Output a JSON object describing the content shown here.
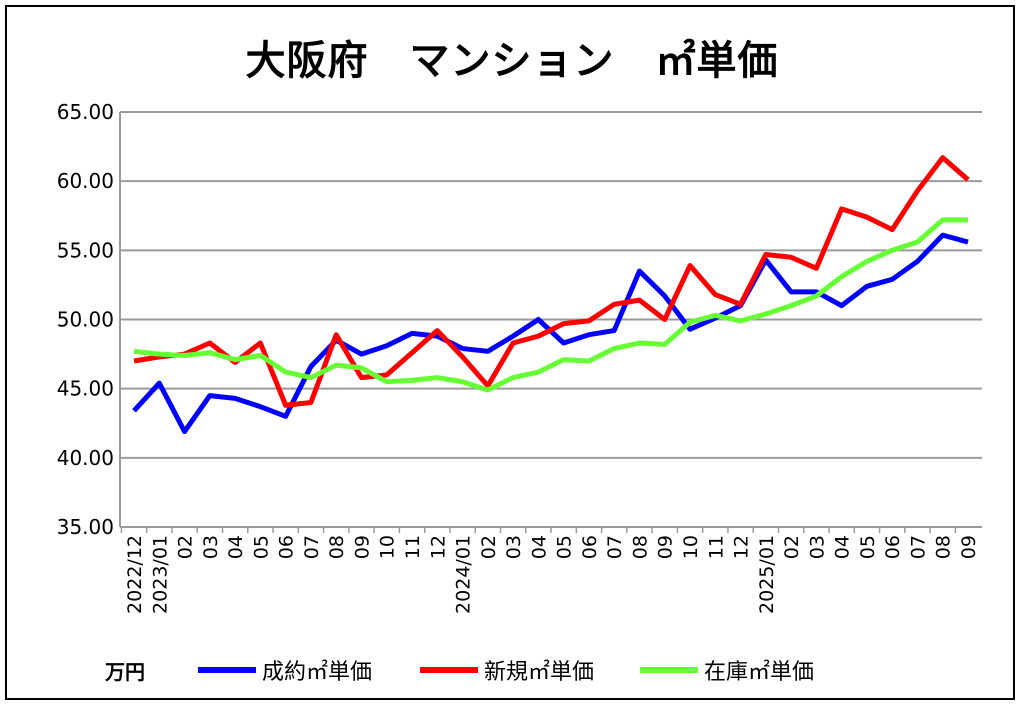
{
  "chart_data": {
    "type": "line",
    "title": "大阪府　マンション　㎡単価",
    "ylabel": "万円",
    "ylim": [
      35,
      65
    ],
    "yticks": [
      "35.00",
      "40.00",
      "45.00",
      "50.00",
      "55.00",
      "60.00",
      "65.00"
    ],
    "grid": true,
    "legend_position": "bottom",
    "categories": [
      "2022/12",
      "2023/01",
      "02",
      "03",
      "04",
      "05",
      "06",
      "07",
      "08",
      "09",
      "10",
      "11",
      "12",
      "2024/01",
      "02",
      "03",
      "04",
      "05",
      "06",
      "07",
      "08",
      "09",
      "10",
      "11",
      "12",
      "2025/01",
      "02",
      "03",
      "04",
      "05",
      "06",
      "07",
      "08",
      "09"
    ],
    "series": [
      {
        "name": "成約㎡単価",
        "color": "#0000ff",
        "values": [
          43.4,
          45.4,
          41.9,
          44.5,
          44.3,
          43.7,
          43.0,
          46.6,
          48.5,
          47.5,
          48.1,
          49.0,
          48.8,
          47.9,
          47.7,
          48.8,
          50.0,
          48.3,
          48.9,
          49.2,
          53.5,
          51.7,
          49.3,
          50.1,
          51.0,
          54.3,
          52.0,
          52.0,
          51.0,
          52.4,
          52.9,
          54.2,
          56.1,
          55.6
        ]
      },
      {
        "name": "新規㎡単価",
        "color": "#ff0000",
        "values": [
          47.0,
          47.3,
          47.5,
          48.3,
          46.9,
          48.3,
          43.8,
          44.0,
          48.9,
          45.8,
          46.0,
          47.6,
          49.2,
          47.3,
          45.2,
          48.3,
          48.8,
          49.7,
          49.9,
          51.1,
          51.4,
          50.0,
          53.9,
          51.8,
          51.1,
          54.7,
          54.5,
          53.7,
          58.0,
          57.4,
          56.5,
          59.3,
          61.7,
          60.1
        ]
      },
      {
        "name": "在庫㎡単価",
        "color": "#66ff33",
        "values": [
          47.7,
          47.5,
          47.4,
          47.6,
          47.1,
          47.4,
          46.2,
          45.8,
          46.7,
          46.5,
          45.5,
          45.6,
          45.8,
          45.5,
          44.9,
          45.8,
          46.2,
          47.1,
          47.0,
          47.9,
          48.3,
          48.2,
          49.8,
          50.3,
          49.9,
          50.4,
          51.0,
          51.7,
          53.1,
          54.2,
          55.0,
          55.6,
          57.2,
          57.2
        ]
      }
    ]
  }
}
